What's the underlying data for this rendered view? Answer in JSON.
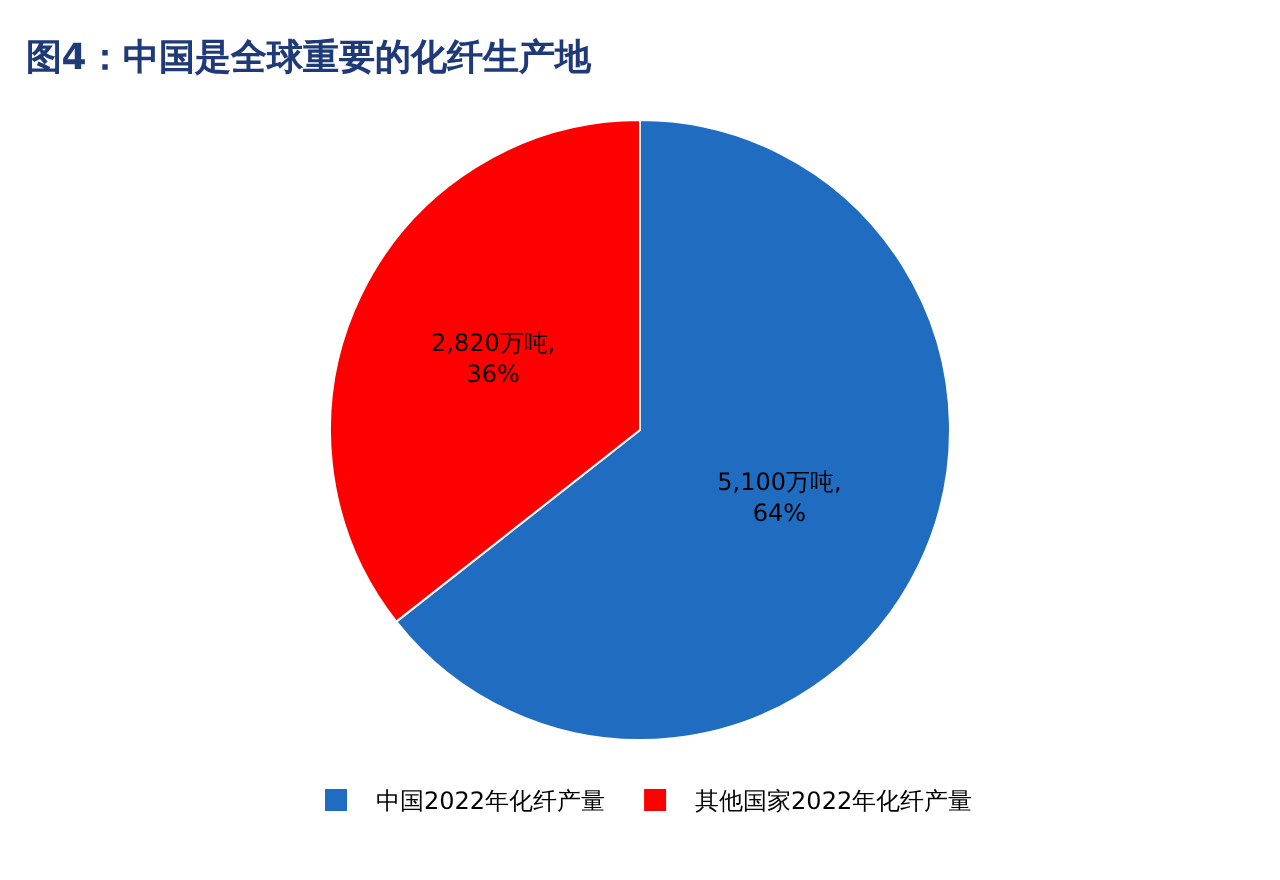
{
  "chart_data": {
    "type": "pie",
    "title": "图4：中国是全球重要的化纤生产地",
    "categories": [
      "中国2022年化纤产量",
      "其他国家2022年化纤产量"
    ],
    "values": [
      5100,
      2820
    ],
    "colors": [
      "#1f6cc0",
      "#ff0000"
    ],
    "value_labels": [
      "5,100万吨,\n64%",
      "2,820万吨,\n36%"
    ],
    "legend": "bottom"
  }
}
